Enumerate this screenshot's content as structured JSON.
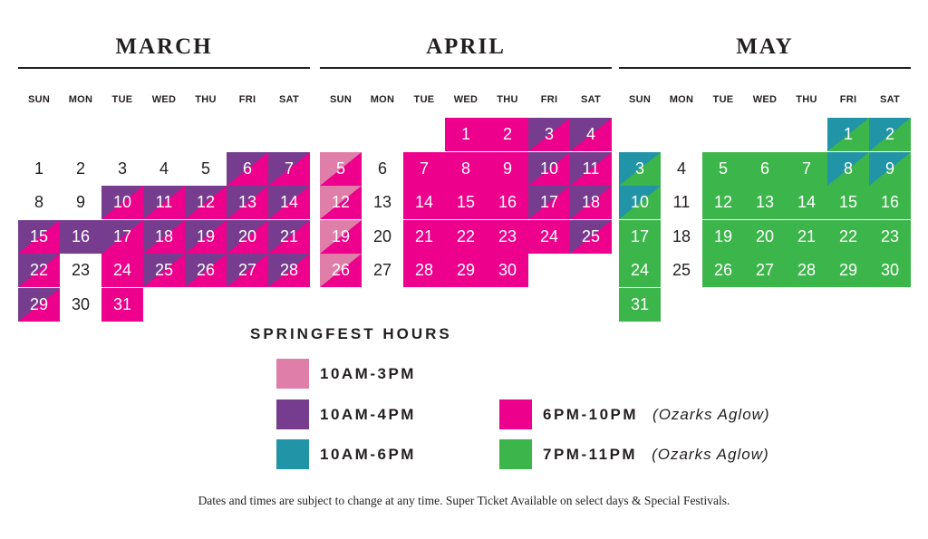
{
  "colors": {
    "c3": "#df7ea9",
    "c4": "#763d8e",
    "c6": "#2294a7",
    "c10": "#ec008c",
    "c11": "#3cb54a"
  },
  "weekdays": [
    "SUN",
    "MON",
    "TUE",
    "WED",
    "THU",
    "FRI",
    "SAT"
  ],
  "months": [
    {
      "name": "MARCH",
      "weeks": [
        [
          null,
          null,
          null,
          null,
          null,
          null,
          null
        ],
        [
          {
            "d": "1"
          },
          {
            "d": "2"
          },
          {
            "d": "3"
          },
          {
            "d": "4"
          },
          {
            "d": "5"
          },
          {
            "d": "6",
            "c": "c4",
            "c2": "c10"
          },
          {
            "d": "7",
            "c": "c4",
            "c2": "c10"
          }
        ],
        [
          {
            "d": "8"
          },
          {
            "d": "9"
          },
          {
            "d": "10",
            "c": "c4",
            "c2": "c10"
          },
          {
            "d": "11",
            "c": "c4",
            "c2": "c10"
          },
          {
            "d": "12",
            "c": "c4",
            "c2": "c10"
          },
          {
            "d": "13",
            "c": "c4",
            "c2": "c10"
          },
          {
            "d": "14",
            "c": "c4",
            "c2": "c10"
          }
        ],
        [
          {
            "d": "15",
            "c": "c4",
            "c2": "c10"
          },
          {
            "d": "16",
            "c": "c4"
          },
          {
            "d": "17",
            "c": "c4",
            "c2": "c10"
          },
          {
            "d": "18",
            "c": "c4",
            "c2": "c10"
          },
          {
            "d": "19",
            "c": "c4",
            "c2": "c10"
          },
          {
            "d": "20",
            "c": "c4",
            "c2": "c10"
          },
          {
            "d": "21",
            "c": "c4",
            "c2": "c10"
          }
        ],
        [
          {
            "d": "22",
            "c": "c4",
            "c2": "c10"
          },
          {
            "d": "23"
          },
          {
            "d": "24",
            "c": "c10"
          },
          {
            "d": "25",
            "c": "c4",
            "c2": "c10"
          },
          {
            "d": "26",
            "c": "c4",
            "c2": "c10"
          },
          {
            "d": "27",
            "c": "c4",
            "c2": "c10"
          },
          {
            "d": "28",
            "c": "c4",
            "c2": "c10"
          }
        ],
        [
          {
            "d": "29",
            "c": "c4",
            "c2": "c10"
          },
          {
            "d": "30"
          },
          {
            "d": "31",
            "c": "c10"
          },
          null,
          null,
          null,
          null
        ]
      ]
    },
    {
      "name": "APRIL",
      "weeks": [
        [
          null,
          null,
          null,
          {
            "d": "1",
            "c": "c10"
          },
          {
            "d": "2",
            "c": "c10"
          },
          {
            "d": "3",
            "c": "c4",
            "c2": "c10"
          },
          {
            "d": "4",
            "c": "c4",
            "c2": "c10"
          }
        ],
        [
          {
            "d": "5",
            "c": "c3",
            "c2": "c10"
          },
          {
            "d": "6"
          },
          {
            "d": "7",
            "c": "c10"
          },
          {
            "d": "8",
            "c": "c10"
          },
          {
            "d": "9",
            "c": "c10"
          },
          {
            "d": "10",
            "c": "c4",
            "c2": "c10"
          },
          {
            "d": "11",
            "c": "c4",
            "c2": "c10"
          }
        ],
        [
          {
            "d": "12",
            "c": "c3",
            "c2": "c10"
          },
          {
            "d": "13"
          },
          {
            "d": "14",
            "c": "c10"
          },
          {
            "d": "15",
            "c": "c10"
          },
          {
            "d": "16",
            "c": "c10"
          },
          {
            "d": "17",
            "c": "c4",
            "c2": "c10"
          },
          {
            "d": "18",
            "c": "c4",
            "c2": "c10"
          }
        ],
        [
          {
            "d": "19",
            "c": "c3",
            "c2": "c10"
          },
          {
            "d": "20"
          },
          {
            "d": "21",
            "c": "c10"
          },
          {
            "d": "22",
            "c": "c10"
          },
          {
            "d": "23",
            "c": "c10"
          },
          {
            "d": "24",
            "c": "c10"
          },
          {
            "d": "25",
            "c": "c4",
            "c2": "c10"
          }
        ],
        [
          {
            "d": "26",
            "c": "c3",
            "c2": "c10"
          },
          {
            "d": "27"
          },
          {
            "d": "28",
            "c": "c10"
          },
          {
            "d": "29",
            "c": "c10"
          },
          {
            "d": "30",
            "c": "c10"
          },
          null,
          null
        ]
      ]
    },
    {
      "name": "MAY",
      "weeks": [
        [
          null,
          null,
          null,
          null,
          null,
          {
            "d": "1",
            "c": "c6",
            "c2": "c11"
          },
          {
            "d": "2",
            "c": "c6",
            "c2": "c11"
          }
        ],
        [
          {
            "d": "3",
            "c": "c6",
            "c2": "c11"
          },
          {
            "d": "4"
          },
          {
            "d": "5",
            "c": "c11"
          },
          {
            "d": "6",
            "c": "c11"
          },
          {
            "d": "7",
            "c": "c11"
          },
          {
            "d": "8",
            "c": "c6",
            "c2": "c11"
          },
          {
            "d": "9",
            "c": "c6",
            "c2": "c11"
          }
        ],
        [
          {
            "d": "10",
            "c": "c6",
            "c2": "c11"
          },
          {
            "d": "11"
          },
          {
            "d": "12",
            "c": "c11"
          },
          {
            "d": "13",
            "c": "c11"
          },
          {
            "d": "14",
            "c": "c11"
          },
          {
            "d": "15",
            "c": "c11"
          },
          {
            "d": "16",
            "c": "c11"
          }
        ],
        [
          {
            "d": "17",
            "c": "c11"
          },
          {
            "d": "18"
          },
          {
            "d": "19",
            "c": "c11"
          },
          {
            "d": "20",
            "c": "c11"
          },
          {
            "d": "21",
            "c": "c11"
          },
          {
            "d": "22",
            "c": "c11"
          },
          {
            "d": "23",
            "c": "c11"
          }
        ],
        [
          {
            "d": "24",
            "c": "c11"
          },
          {
            "d": "25"
          },
          {
            "d": "26",
            "c": "c11"
          },
          {
            "d": "27",
            "c": "c11"
          },
          {
            "d": "28",
            "c": "c11"
          },
          {
            "d": "29",
            "c": "c11"
          },
          {
            "d": "30",
            "c": "c11"
          }
        ],
        [
          {
            "d": "31",
            "c": "c11"
          },
          null,
          null,
          null,
          null,
          null,
          null
        ]
      ]
    }
  ],
  "legend": {
    "title": "SPRINGFEST HOURS",
    "items": [
      {
        "label": "10AM-3PM",
        "color": "#df7ea9",
        "note": ""
      },
      {
        "label": "10AM-4PM",
        "color": "#763d8e",
        "note": ""
      },
      {
        "label": "10AM-6PM",
        "color": "#2294a7",
        "note": ""
      },
      {
        "label": "6PM-10PM",
        "color": "#ec008c",
        "note": "(Ozarks Aglow)"
      },
      {
        "label": "7PM-11PM",
        "color": "#3cb54a",
        "note": "(Ozarks Aglow)"
      }
    ]
  },
  "footnote": "Dates and times are subject to change at any time. Super Ticket Available on select days & Special Festivals."
}
